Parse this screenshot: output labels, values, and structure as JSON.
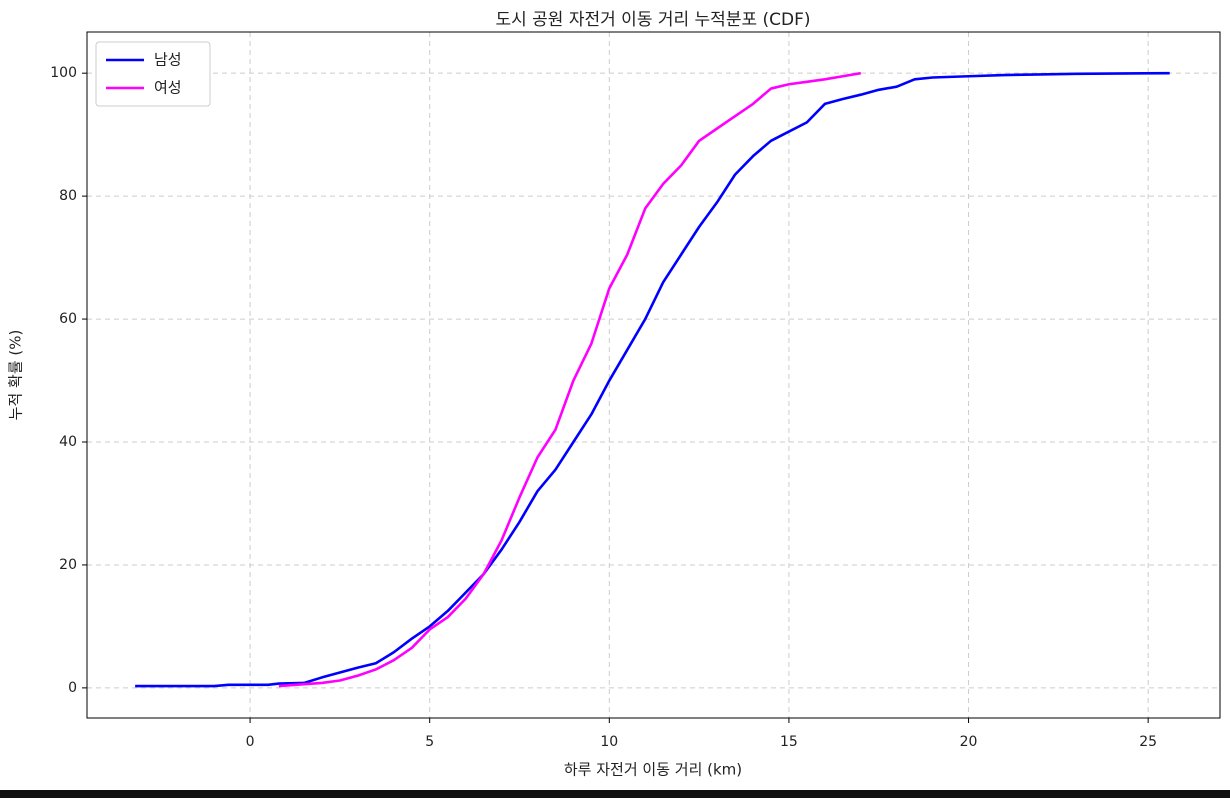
{
  "chart_data": {
    "type": "line",
    "title": "도시 공원 자전거 이동 거리 누적분포 (CDF)",
    "x_label": "하루 자전거 이동 거리 (km)",
    "y_label": "누적 확률 (%)",
    "xlim": [
      -4.54,
      27.0
    ],
    "ylim": [
      -4.9,
      106.7
    ],
    "xticks": [
      0,
      5,
      10,
      15,
      20,
      25
    ],
    "yticks": [
      0,
      20,
      40,
      60,
      80,
      100
    ],
    "grid": true,
    "legend": "upper left",
    "series": [
      {
        "name": "남성",
        "color": "#0000ff",
        "x": [
          -3.2,
          -1,
          -0.6,
          0.5,
          0.8,
          1.5,
          2,
          2.5,
          3,
          3.5,
          4,
          4.5,
          5,
          5.5,
          6,
          6.5,
          7,
          7.5,
          8,
          8.5,
          9,
          9.5,
          10,
          10.5,
          11,
          11.5,
          12,
          12.5,
          13,
          13.5,
          14,
          14.5,
          15,
          15.5,
          16,
          16.5,
          17,
          17.5,
          18,
          18.5,
          19,
          20,
          21,
          22,
          23,
          25.6
        ],
        "values": [
          0.3,
          0.3,
          0.5,
          0.5,
          0.7,
          0.8,
          1.7,
          2.5,
          3.3,
          4,
          5.8,
          8,
          10,
          12.5,
          15.5,
          18.5,
          22.5,
          27,
          32,
          35.5,
          40,
          44.5,
          50,
          55,
          60,
          66,
          70.5,
          75,
          79,
          83.5,
          86.5,
          89,
          90.5,
          92,
          95,
          95.8,
          96.5,
          97.3,
          97.8,
          99,
          99.3,
          99.5,
          99.7,
          99.8,
          99.9,
          100
        ]
      },
      {
        "name": "여성",
        "color": "#ff00ff",
        "x": [
          0.8,
          1.5,
          2,
          2.5,
          3,
          3.5,
          4,
          4.5,
          5,
          5.5,
          6,
          6.5,
          7,
          7.5,
          8,
          8.5,
          9,
          9.5,
          10,
          10.5,
          11,
          11.5,
          12,
          12.5,
          13,
          13.5,
          14,
          14.5,
          15,
          15.5,
          16,
          16.5,
          17
        ],
        "values": [
          0.3,
          0.6,
          0.8,
          1.2,
          2,
          3,
          4.5,
          6.5,
          9.5,
          11.5,
          14.5,
          18.5,
          24,
          31,
          37.5,
          42,
          50,
          56,
          65,
          70.5,
          78,
          82,
          85,
          89,
          91,
          93,
          95,
          97.5,
          98.2,
          98.6,
          99,
          99.5,
          100
        ]
      }
    ]
  }
}
